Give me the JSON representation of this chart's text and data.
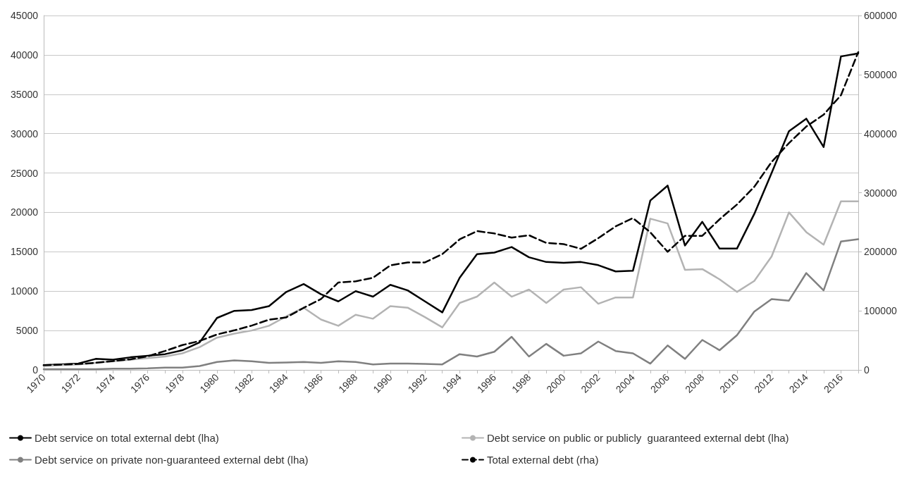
{
  "chart_data": {
    "type": "line",
    "categories": [
      "1970",
      null,
      "1972",
      null,
      "1974",
      null,
      "1976",
      null,
      "1978",
      null,
      "1980",
      null,
      "1982",
      null,
      "1984",
      null,
      "1986",
      null,
      "1988",
      null,
      "1990",
      null,
      "1992",
      null,
      "1994",
      null,
      "1996",
      null,
      "1998",
      null,
      "2000",
      null,
      "2002",
      null,
      "2004",
      null,
      "2006",
      null,
      "2008",
      null,
      "2010",
      null,
      "2012",
      null,
      "2014",
      null,
      "2016",
      null
    ],
    "ylim": [
      0,
      45000
    ],
    "yticks": [
      0,
      5000,
      10000,
      15000,
      20000,
      25000,
      30000,
      35000,
      40000,
      45000
    ],
    "y2lim": [
      0,
      600000
    ],
    "y2ticks": [
      0,
      100000,
      200000,
      300000,
      400000,
      500000,
      600000
    ],
    "grid": "y",
    "legend": "bottom",
    "marker": "none",
    "series": [
      {
        "name": "Debt service on total external debt (lha)",
        "color": "#000000",
        "line_style": "solid",
        "values": [
          600,
          700,
          800,
          1400,
          1300,
          1600,
          1800,
          2000,
          2500,
          3500,
          6600,
          7500,
          7600,
          8100,
          9900,
          10900,
          9600,
          8700,
          10000,
          9300,
          10800,
          10100,
          8700,
          7300,
          11700,
          14700,
          14900,
          15600,
          14300,
          13700,
          13600,
          13700,
          13300,
          12500,
          12600,
          21500,
          23400,
          15800,
          18800,
          15400,
          15400,
          19800,
          25000,
          30300,
          31900,
          28300,
          39800,
          40200
        ]
      },
      {
        "name": "Debt service on public or publicly  guaranteed external debt (lha)",
        "color": "#b3b3b3",
        "line_style": "solid",
        "values": [
          500,
          600,
          700,
          900,
          1100,
          1300,
          1500,
          1700,
          2100,
          2900,
          4100,
          4600,
          5000,
          5600,
          6800,
          7900,
          6400,
          5600,
          7000,
          6500,
          8100,
          7900,
          6700,
          5400,
          8500,
          9300,
          11100,
          9300,
          10200,
          8500,
          10200,
          10500,
          8400,
          9200,
          9200,
          19200,
          18600,
          12700,
          12800,
          11500,
          9900,
          11300,
          14400,
          20000,
          17500,
          15900,
          21400,
          21400
        ]
      },
      {
        "name": "Debt service on private non-guaranteed external debt (lha)",
        "color": "#808080",
        "line_style": "solid",
        "values": [
          100,
          100,
          100,
          100,
          150,
          150,
          200,
          300,
          300,
          500,
          1000,
          1200,
          1100,
          900,
          950,
          1000,
          900,
          1100,
          1000,
          700,
          800,
          800,
          750,
          700,
          2000,
          1700,
          2300,
          4200,
          1700,
          3300,
          1800,
          2100,
          3600,
          2400,
          2100,
          800,
          3100,
          1400,
          3800,
          2500,
          4400,
          7400,
          9000,
          8800,
          12300,
          10100,
          16300,
          16600
        ]
      },
      {
        "name": "Total external debt (rha)",
        "color": "#000000",
        "line_style": "dashed",
        "axis": "y2",
        "values": [
          8000,
          9000,
          10000,
          12000,
          15000,
          18000,
          23000,
          32000,
          42000,
          49000,
          60000,
          67000,
          75000,
          85000,
          89000,
          105000,
          120000,
          148000,
          150000,
          156000,
          177000,
          182000,
          182000,
          196000,
          221000,
          235000,
          231000,
          224000,
          228000,
          215000,
          213000,
          205000,
          223000,
          243000,
          257000,
          233000,
          200000,
          227000,
          227000,
          255000,
          280000,
          310000,
          352000,
          384000,
          412000,
          432000,
          465000,
          538000
        ]
      }
    ]
  }
}
